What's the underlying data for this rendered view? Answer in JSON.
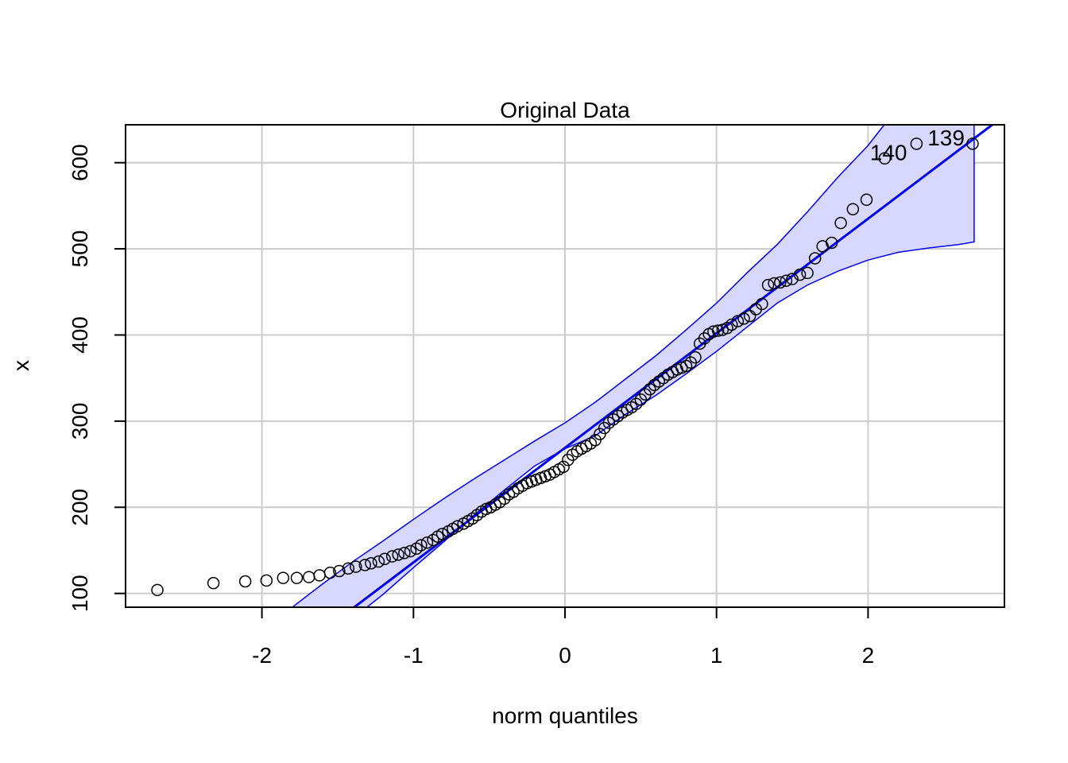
{
  "chart_data": {
    "type": "scatter",
    "title": "Original Data",
    "xlabel": "norm quantiles",
    "ylabel": "x",
    "xlim": [
      -2.9,
      2.9
    ],
    "ylim": [
      84,
      644
    ],
    "x_ticks": [
      -2,
      -1,
      0,
      1,
      2
    ],
    "x_tick_labels": [
      "-2",
      "-1",
      "0",
      "1",
      "2"
    ],
    "y_ticks": [
      100,
      200,
      300,
      400,
      500,
      600
    ],
    "y_tick_labels": [
      "100",
      "200",
      "300",
      "400",
      "500",
      "600"
    ],
    "grid": true,
    "reference_line": {
      "intercept": 269,
      "slope": 133,
      "color": "#0000ee"
    },
    "confidence_band": {
      "color": "#0000ee",
      "fill": "#d7d7ff",
      "q": [
        -1.8,
        -1.6,
        -1.4,
        -1.2,
        -1.0,
        -0.8,
        -0.6,
        -0.4,
        -0.2,
        0.0,
        0.2,
        0.4,
        0.6,
        0.8,
        1.0,
        1.2,
        1.4,
        1.6,
        1.8,
        2.0,
        2.2,
        2.4,
        2.6,
        2.7
      ],
      "upper": [
        84,
        111,
        137,
        161,
        186,
        210,
        233,
        255,
        277,
        298,
        322,
        349,
        376,
        406,
        437,
        472,
        505,
        543,
        583,
        620,
        665,
        700,
        700,
        700
      ],
      "lower": [
        -95,
        -50,
        71,
        99,
        130,
        160,
        191,
        220,
        248,
        268,
        283,
        308,
        330,
        355,
        381,
        409,
        437,
        458,
        474,
        487,
        496,
        501,
        505,
        508
      ]
    },
    "points": {
      "x": [
        -2.69,
        -2.32,
        -2.11,
        -1.97,
        -1.86,
        -1.77,
        -1.69,
        -1.62,
        -1.55,
        -1.49,
        -1.43,
        -1.38,
        -1.32,
        -1.28,
        -1.23,
        -1.19,
        -1.14,
        -1.1,
        -1.06,
        -1.02,
        -0.98,
        -0.95,
        -0.91,
        -0.87,
        -0.84,
        -0.81,
        -0.77,
        -0.74,
        -0.71,
        -0.67,
        -0.64,
        -0.61,
        -0.58,
        -0.55,
        -0.52,
        -0.49,
        -0.46,
        -0.43,
        -0.4,
        -0.37,
        -0.34,
        -0.31,
        -0.28,
        -0.25,
        -0.22,
        -0.19,
        -0.16,
        -0.13,
        -0.1,
        -0.07,
        -0.04,
        -0.01,
        0.02,
        0.05,
        0.08,
        0.11,
        0.14,
        0.17,
        0.2,
        0.23,
        0.26,
        0.29,
        0.32,
        0.35,
        0.38,
        0.41,
        0.44,
        0.47,
        0.5,
        0.53,
        0.56,
        0.59,
        0.62,
        0.65,
        0.68,
        0.71,
        0.74,
        0.77,
        0.8,
        0.83,
        0.86,
        0.89,
        0.92,
        0.95,
        0.98,
        1.01,
        1.04,
        1.07,
        1.1,
        1.14,
        1.18,
        1.22,
        1.26,
        1.3,
        1.34,
        1.38,
        1.42,
        1.46,
        1.5,
        1.55,
        1.6,
        1.65,
        1.7,
        1.76,
        1.82,
        1.9,
        1.99,
        2.11,
        2.32,
        2.69
      ],
      "y": [
        104,
        112,
        114,
        115,
        118,
        118,
        119,
        121,
        124,
        126,
        129,
        131,
        133,
        135,
        137,
        140,
        143,
        145,
        147,
        149,
        152,
        156,
        159,
        162,
        166,
        169,
        172,
        175,
        178,
        181,
        184,
        187,
        191,
        195,
        198,
        200,
        203,
        206,
        210,
        215,
        218,
        222,
        225,
        228,
        230,
        232,
        234,
        236,
        238,
        241,
        244,
        247,
        255,
        261,
        265,
        268,
        271,
        274,
        278,
        285,
        292,
        298,
        302,
        306,
        310,
        313,
        316,
        320,
        325,
        331,
        337,
        342,
        346,
        350,
        354,
        357,
        360,
        362,
        364,
        368,
        374,
        390,
        396,
        401,
        404,
        405,
        406,
        408,
        412,
        416,
        419,
        422,
        430,
        436,
        458,
        460,
        461,
        463,
        465,
        470,
        472,
        489,
        503,
        507,
        530,
        546,
        557,
        605,
        622,
        622
      ]
    },
    "annotations": [
      {
        "label": "140",
        "x": 2.31,
        "y": 605
      },
      {
        "label": "139",
        "x": 2.69,
        "y": 622
      }
    ]
  }
}
